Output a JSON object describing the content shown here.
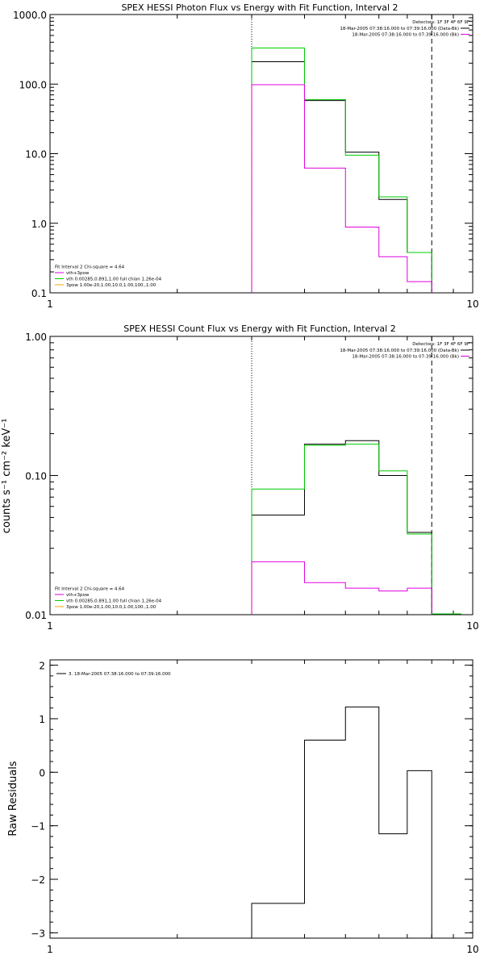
{
  "chart_data": [
    {
      "type": "line",
      "title": "SPEX HESSI Photon Flux vs Energy with Fit Function, Interval 2",
      "xlabel": "",
      "ylabel": "",
      "xscale": "log",
      "yscale": "log",
      "xlim": [
        1,
        10
      ],
      "ylim": [
        0.1,
        1000
      ],
      "x_ticks": [
        "1",
        "10"
      ],
      "y_ticks": [
        "0.1",
        "1.0",
        "10.0",
        "100.0",
        "1000.0"
      ],
      "vlines": [
        {
          "x": 3,
          "style": "dotted"
        },
        {
          "x": 8,
          "style": "dashed"
        }
      ],
      "series": [
        {
          "color": "#000000",
          "edges": [
            3,
            4,
            5,
            6,
            7,
            8
          ],
          "values": [
            210,
            58,
            10.5,
            2.2,
            0.38
          ]
        },
        {
          "color": "#00cc00",
          "edges": [
            3,
            4,
            5,
            6,
            7,
            8
          ],
          "values": [
            330,
            60,
            9.5,
            2.4,
            0.38
          ]
        },
        {
          "color": "#e000e0",
          "edges": [
            3,
            4,
            5,
            6,
            7,
            8
          ],
          "values": [
            98,
            6.2,
            0.88,
            0.33,
            0.145
          ]
        }
      ],
      "legend_top": {
        "position": "top-right",
        "header": "Detectors: 1F 3F 4F 6F 9F",
        "entries": [
          {
            "label": "18-Mar-2005 07:38:16.000 to 07:39:16.000 (Data-Bk)",
            "color": "#000000"
          },
          {
            "label": "18-Mar-2005 07:38:16.000 to 07:39:16.000 (Bk)",
            "color": "#e000e0"
          }
        ]
      },
      "legend_bottom": {
        "position": "bottom-left",
        "header": "Fit Interval 2   Chi-square = 4.64",
        "entries": [
          {
            "label": "vth+3pow",
            "color": "#e000e0"
          },
          {
            "label": "vth 0.00285,0.891,1.00  full chian 1.26e-04",
            "color": "#00cc00"
          },
          {
            "label": "3pow 1.00e-20,1.00,10.0,1.00,100.,1.00",
            "color": "#ffa500"
          }
        ]
      }
    },
    {
      "type": "line",
      "title": "SPEX HESSI Count Flux vs Energy with Fit Function, Interval 2",
      "xlabel": "",
      "ylabel": "counts s⁻¹ cm⁻² keV⁻¹",
      "xscale": "log",
      "yscale": "log",
      "xlim": [
        1,
        10
      ],
      "ylim": [
        0.01,
        1
      ],
      "x_ticks": [
        "1",
        "10"
      ],
      "y_ticks": [
        "0.01",
        "0.10",
        "1.00"
      ],
      "vlines": [
        {
          "x": 3,
          "style": "dotted"
        },
        {
          "x": 8,
          "style": "dashed"
        }
      ],
      "series": [
        {
          "color": "#000000",
          "edges": [
            3,
            4,
            5,
            6,
            7,
            8
          ],
          "values": [
            0.052,
            0.168,
            0.178,
            0.1,
            0.039
          ]
        },
        {
          "color": "#00cc00",
          "edges": [
            3,
            4,
            5,
            6,
            7,
            8
          ],
          "values": [
            0.08,
            0.165,
            0.168,
            0.108,
            0.038
          ]
        },
        {
          "color": "#e000e0",
          "edges": [
            3,
            4,
            5,
            6,
            7,
            8
          ],
          "values": [
            0.024,
            0.017,
            0.0155,
            0.0148,
            0.0155
          ]
        }
      ],
      "extra_segment": {
        "color": "#00cc00",
        "x": [
          8,
          9.4
        ],
        "y": 0.01
      },
      "legend_top": {
        "position": "top-right",
        "header": "Detectors: 1F 3F 4F 6F 9F",
        "entries": [
          {
            "label": "18-Mar-2005 07:38:16.000 to 07:39:16.000 (Data-Bk)",
            "color": "#000000"
          },
          {
            "label": "18-Mar-2005 07:38:16.000 to 07:39:16.000 (Bk)",
            "color": "#e000e0"
          }
        ]
      },
      "legend_bottom": {
        "position": "bottom-left",
        "header": "Fit Interval 2   Chi-square = 4.64",
        "entries": [
          {
            "label": "vth+3pow",
            "color": "#e000e0"
          },
          {
            "label": "vth 0.00285,0.891,1.00  full chian 1.26e-04",
            "color": "#00cc00"
          },
          {
            "label": "3pow 1.00e-20,1.00,10.0,1.00,100.,1.00",
            "color": "#ffa500"
          }
        ]
      }
    },
    {
      "type": "line",
      "title": "",
      "xlabel": "",
      "ylabel": "Raw Residuals",
      "xscale": "log",
      "yscale": "linear",
      "xlim": [
        1,
        10
      ],
      "ylim": [
        -3.1,
        2.1
      ],
      "x_ticks": [
        "1",
        "10"
      ],
      "y_ticks": [
        "-3",
        "-2",
        "-1",
        "0",
        "1",
        "2"
      ],
      "series": [
        {
          "color": "#000000",
          "edges": [
            3,
            4,
            5,
            6,
            7,
            8
          ],
          "values": [
            -2.45,
            0.6,
            1.22,
            -1.15,
            0.03
          ],
          "drop_to_bottom": true
        }
      ],
      "legend": {
        "position": "top-left",
        "entries": [
          {
            "label": "3. 18-Mar-2005 07:38:16.000 to 07:39:16.000",
            "color": "#000000"
          }
        ]
      }
    }
  ]
}
